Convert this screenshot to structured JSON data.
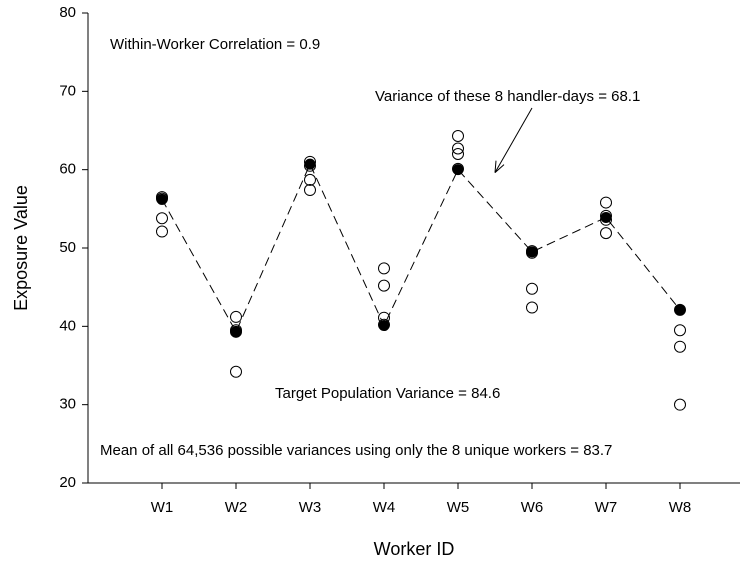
{
  "chart_data": {
    "type": "scatter",
    "x_label": "Worker ID",
    "y_label": "Exposure Value",
    "categories": [
      "W1",
      "W2",
      "W3",
      "W4",
      "W5",
      "W6",
      "W7",
      "W8"
    ],
    "ylim": [
      20,
      80
    ],
    "yticks": [
      20,
      30,
      40,
      50,
      60,
      70,
      80
    ],
    "series": [
      {
        "marker": "open",
        "color": "#000000",
        "values": [
          [
            56.5,
            56.3,
            53.8,
            52.1
          ],
          [
            41.2,
            39.5,
            39.3,
            34.2
          ],
          [
            61.0,
            60.5,
            58.7,
            57.4
          ],
          [
            47.4,
            45.2,
            41.1,
            40.2
          ],
          [
            64.3,
            62.7,
            62.0,
            60.1
          ],
          [
            49.6,
            49.4,
            44.8,
            42.4
          ],
          [
            55.8,
            54.1,
            53.6,
            51.9
          ],
          [
            42.1,
            39.5,
            37.4,
            30.0
          ]
        ]
      },
      {
        "marker": "filled",
        "line": "dashed",
        "color": "#000000",
        "values": [
          56.2,
          39.3,
          60.7,
          40.1,
          60.0,
          49.5,
          53.9,
          42.1
        ]
      }
    ],
    "annotations": [
      {
        "text": "Within-Worker Correlation = 0.9"
      },
      {
        "text": "Variance of these 8 handler-days = 68.1"
      },
      {
        "text": "Target Population Variance = 84.6"
      },
      {
        "text": "Mean of all 64,536 possible variances using only the 8 unique workers = 83.7"
      }
    ]
  }
}
